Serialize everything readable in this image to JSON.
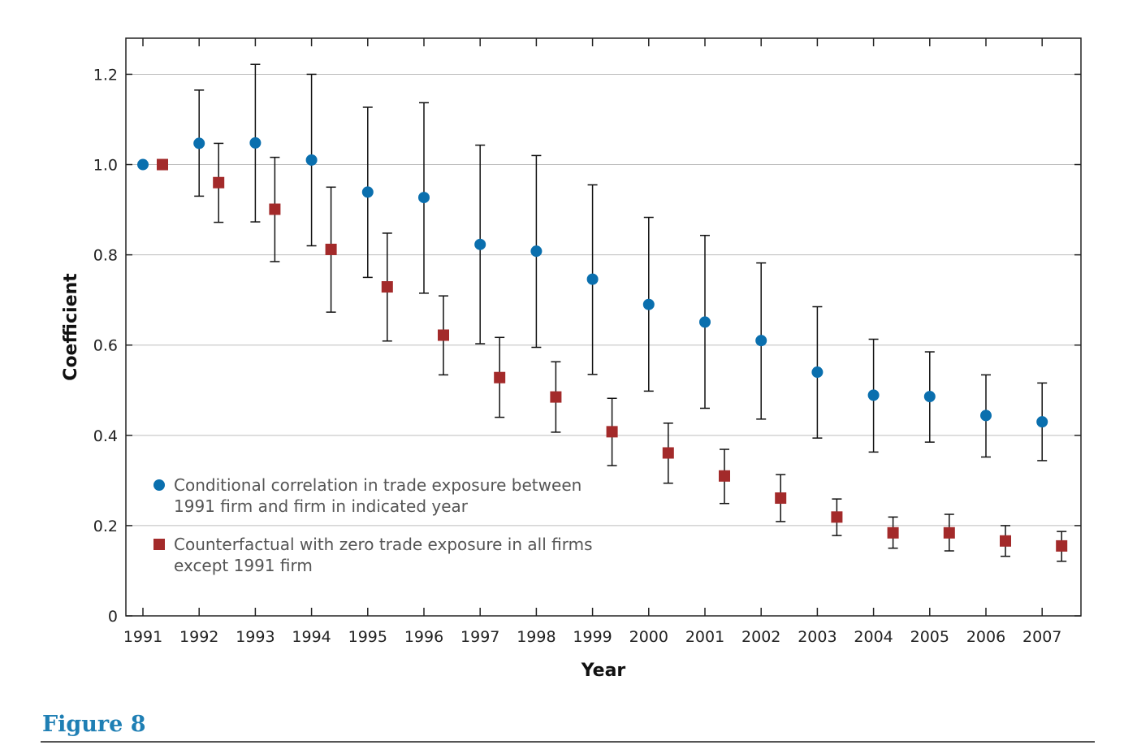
{
  "figure": {
    "label": "Figure 8"
  },
  "chart_data": {
    "type": "scatter",
    "xlabel": "Year",
    "ylabel": "Coefficient",
    "x": [
      1991,
      1992,
      1993,
      1994,
      1995,
      1996,
      1997,
      1998,
      1999,
      2000,
      2001,
      2002,
      2003,
      2004,
      2005,
      2006,
      2007
    ],
    "ylim": [
      0,
      1.28
    ],
    "yticks": [
      0,
      0.2,
      0.4,
      0.6,
      0.8,
      1.0,
      1.2
    ],
    "ytick_labels": [
      "0",
      "0.2",
      "0.4",
      "0.6",
      "0.8",
      "1.0",
      "1.2"
    ],
    "grid": "horizontal",
    "legend_position": "bottom-left",
    "error_bars": true,
    "series": [
      {
        "name": "Conditional correlation in trade exposure between 1991 firm and firm in indicated year",
        "legend_lines": [
          "Conditional correlation in trade exposure between",
          "1991 firm and firm in indicated year"
        ],
        "marker": "circle",
        "color": "#0a6fae",
        "values": [
          1.0,
          1.047,
          1.048,
          1.01,
          0.939,
          0.927,
          0.823,
          0.808,
          0.746,
          0.69,
          0.651,
          0.61,
          0.54,
          0.489,
          0.486,
          0.444,
          0.43
        ],
        "lower": [
          null,
          0.93,
          0.873,
          0.82,
          0.75,
          0.715,
          0.603,
          0.595,
          0.535,
          0.498,
          0.46,
          0.436,
          0.394,
          0.363,
          0.385,
          0.352,
          0.344
        ],
        "upper": [
          null,
          1.165,
          1.222,
          1.2,
          1.127,
          1.137,
          1.043,
          1.02,
          0.955,
          0.883,
          0.843,
          0.782,
          0.685,
          0.613,
          0.585,
          0.534,
          0.516
        ]
      },
      {
        "name": "Counterfactual with zero trade exposure in all firms except 1991 firm",
        "legend_lines": [
          "Counterfactual with zero trade exposure in all firms",
          "except 1991 firm"
        ],
        "marker": "square",
        "color": "#a32a2a",
        "values": [
          1.0,
          0.96,
          0.901,
          0.812,
          0.729,
          0.622,
          0.528,
          0.485,
          0.408,
          0.361,
          0.31,
          0.261,
          0.219,
          0.184,
          0.184,
          0.166,
          0.155
        ],
        "lower": [
          null,
          0.872,
          0.785,
          0.673,
          0.609,
          0.534,
          0.44,
          0.407,
          0.333,
          0.294,
          0.249,
          0.209,
          0.178,
          0.15,
          0.144,
          0.132,
          0.121
        ],
        "upper": [
          null,
          1.047,
          1.016,
          0.95,
          0.848,
          0.709,
          0.617,
          0.563,
          0.482,
          0.427,
          0.369,
          0.313,
          0.259,
          0.219,
          0.225,
          0.2,
          0.187
        ]
      }
    ]
  }
}
